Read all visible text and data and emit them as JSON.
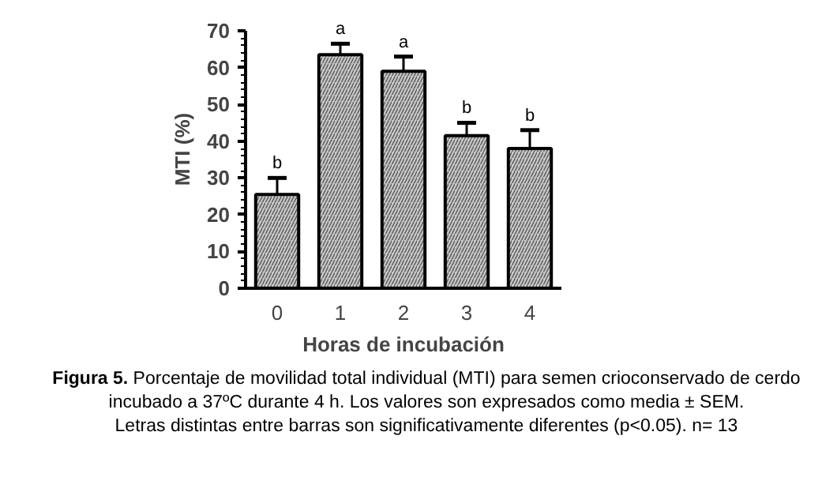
{
  "chart_data": {
    "type": "bar",
    "title": "Figura 5.",
    "xlabel": "Horas de incubación",
    "ylabel": "MTI (%)",
    "categories": [
      "0",
      "1",
      "2",
      "3",
      "4"
    ],
    "values": [
      25.5,
      63.5,
      59,
      41.5,
      38
    ],
    "errors": [
      [
        25.5,
        30
      ],
      [
        63.5,
        66.5
      ],
      [
        59,
        63
      ],
      [
        41.5,
        45
      ],
      [
        38,
        43
      ]
    ],
    "color": "#c8c8c8",
    "ylim": [
      0,
      70
    ],
    "yticks": [
      0,
      10,
      20,
      30,
      40,
      50,
      60,
      70
    ],
    "grid": false,
    "annotations": [
      {
        "text": "b",
        "x": "0",
        "y": 30
      },
      {
        "text": "a",
        "x": "1",
        "y": 66.5
      },
      {
        "text": "a",
        "x": "2",
        "y": 63
      },
      {
        "text": "b",
        "x": "3",
        "y": 45
      },
      {
        "text": "b",
        "x": "4",
        "y": 43
      },
      "Porcentaje de movilidad total individual (MTI) para semen crioconservado de cerdo",
      "incubado a 37ºC durante 4 h. Los valores son expresados como media ± SEM.",
      "Letras distintas entre barras son significativamente diferentes (p<0.05). n= 13"
    ]
  }
}
